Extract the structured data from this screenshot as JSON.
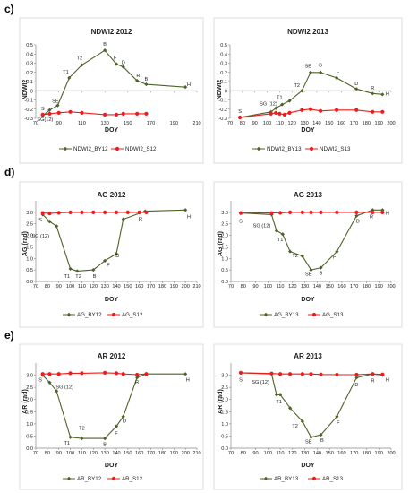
{
  "panel_labels": [
    "c)",
    "d)",
    "e)"
  ],
  "chart_data": [
    {
      "id": "ndwi-2012",
      "type": "line",
      "title": "NDWI2 2012",
      "xlabel": "DOY",
      "ylabel": "NDWI2",
      "xlim": [
        70,
        210
      ],
      "ylim": [
        -0.3,
        0.5
      ],
      "xticks": [
        "70",
        "90",
        "110",
        "130",
        "150",
        "170",
        "190",
        "210"
      ],
      "yticks": [
        "-0.3",
        "-0.2",
        "-0.1",
        "0",
        "0.1",
        "0.2",
        "0.3",
        "0.4",
        "0.5"
      ],
      "grid": false,
      "series": [
        {
          "name": "NDWI2_BY12",
          "color": "#4f6228",
          "marker": "diamond",
          "x": [
            76,
            82,
            89,
            99,
            110,
            130,
            140,
            146,
            158,
            166,
            200
          ],
          "y": [
            -0.27,
            -0.21,
            -0.16,
            0.14,
            0.28,
            0.44,
            0.29,
            0.26,
            0.11,
            0.07,
            0.04
          ]
        },
        {
          "name": "NDWI2_S12",
          "color": "#ee1c1c",
          "marker": "circle",
          "x": [
            76,
            82,
            90,
            100,
            110,
            130,
            140,
            146,
            158,
            166
          ],
          "y": [
            -0.26,
            -0.25,
            -0.24,
            -0.23,
            -0.24,
            -0.26,
            -0.26,
            -0.25,
            -0.25,
            -0.25
          ]
        }
      ],
      "annotations": [
        {
          "text": "S",
          "x": 76,
          "y": -0.21
        },
        {
          "text": "SG(12)",
          "x": 78,
          "y": -0.33
        },
        {
          "text": "SE",
          "x": 87,
          "y": -0.13
        },
        {
          "text": "T1",
          "x": 96,
          "y": 0.19
        },
        {
          "text": "T2",
          "x": 108,
          "y": 0.34
        },
        {
          "text": "B",
          "x": 130,
          "y": 0.49
        },
        {
          "text": "F",
          "x": 139,
          "y": 0.34
        },
        {
          "text": "D",
          "x": 146,
          "y": 0.29
        },
        {
          "text": "R",
          "x": 159,
          "y": 0.15
        },
        {
          "text": "B",
          "x": 166,
          "y": 0.11
        },
        {
          "text": "H",
          "x": 203,
          "y": 0.05
        }
      ]
    },
    {
      "id": "ndwi-2013",
      "type": "line",
      "title": "NDWI2 2013",
      "xlabel": "DOY",
      "ylabel": "NDWI2",
      "xlim": [
        70,
        200
      ],
      "ylim": [
        -0.3,
        0.5
      ],
      "xticks": [
        "70",
        "80",
        "90",
        "100",
        "110",
        "120",
        "130",
        "140",
        "150",
        "160",
        "170",
        "180",
        "190",
        "200"
      ],
      "yticks": [
        "-0.3",
        "-0.2",
        "-0.1",
        "0",
        "0.1",
        "0.2",
        "0.3",
        "0.4",
        "0.5"
      ],
      "grid": false,
      "series": [
        {
          "name": "NDWI2_BY13",
          "color": "#4f6228",
          "marker": "diamond",
          "x": [
            78,
            103,
            107,
            112,
            118,
            128,
            135,
            143,
            156,
            172,
            185,
            193
          ],
          "y": [
            -0.29,
            -0.23,
            -0.19,
            -0.15,
            -0.11,
            0.0,
            0.2,
            0.2,
            0.14,
            0.02,
            -0.03,
            -0.04
          ]
        },
        {
          "name": "NDWI2_S13",
          "color": "#ee1c1c",
          "marker": "circle",
          "x": [
            78,
            103,
            107,
            110,
            114,
            118,
            128,
            135,
            143,
            156,
            172,
            185,
            193
          ],
          "y": [
            -0.29,
            -0.25,
            -0.24,
            -0.25,
            -0.26,
            -0.24,
            -0.21,
            -0.2,
            -0.22,
            -0.21,
            -0.21,
            -0.23,
            -0.23
          ]
        }
      ],
      "annotations": [
        {
          "text": "S",
          "x": 78,
          "y": -0.24
        },
        {
          "text": "SG (12)",
          "x": 101,
          "y": -0.16
        },
        {
          "text": "T1",
          "x": 110,
          "y": -0.09
        },
        {
          "text": "T2",
          "x": 124,
          "y": 0.04
        },
        {
          "text": "SE",
          "x": 133,
          "y": 0.25
        },
        {
          "text": "B",
          "x": 143,
          "y": 0.26
        },
        {
          "text": "F",
          "x": 157,
          "y": 0.17
        },
        {
          "text": "D",
          "x": 172,
          "y": 0.06
        },
        {
          "text": "R",
          "x": 185,
          "y": 0.01
        },
        {
          "text": "H",
          "x": 197,
          "y": -0.05
        }
      ]
    },
    {
      "id": "ag-2012",
      "type": "line",
      "title": "AG 2012",
      "xlabel": "DOY",
      "ylabel": "AG (rad)",
      "xlim": [
        70,
        210
      ],
      "ylim": [
        0,
        3.5
      ],
      "xticks": [
        "70",
        "80",
        "90",
        "100",
        "110",
        "120",
        "130",
        "140",
        "150",
        "160",
        "170",
        "180",
        "190",
        "200",
        "210"
      ],
      "yticks": [
        "0.0",
        "0.5",
        "1.0",
        "1.5",
        "2.0",
        "2.5",
        "3.0"
      ],
      "grid": false,
      "series": [
        {
          "name": "AG_BY12",
          "color": "#4f6228",
          "marker": "diamond",
          "x": [
            76,
            82,
            88,
            100,
            106,
            120,
            130,
            140,
            146,
            165,
            200
          ],
          "y": [
            2.9,
            2.6,
            2.4,
            0.55,
            0.45,
            0.5,
            0.9,
            1.2,
            2.7,
            3.05,
            3.1
          ]
        },
        {
          "name": "AG_S12",
          "color": "#ee1c1c",
          "marker": "circle",
          "x": [
            76,
            82,
            90,
            100,
            110,
            120,
            130,
            140,
            150,
            160,
            166
          ],
          "y": [
            2.97,
            2.95,
            2.98,
            3.0,
            3.0,
            3.0,
            3.0,
            3.0,
            3.0,
            3.0,
            3.0
          ]
        }
      ],
      "annotations": [
        {
          "text": "S",
          "x": 74,
          "y": 2.6
        },
        {
          "text": "SG (12)",
          "x": 74,
          "y": 1.9
        },
        {
          "text": "T1",
          "x": 97,
          "y": 0.15
        },
        {
          "text": "T2",
          "x": 107,
          "y": 0.15
        },
        {
          "text": "B",
          "x": 121,
          "y": 0.15
        },
        {
          "text": "F",
          "x": 133,
          "y": 0.65
        },
        {
          "text": "D",
          "x": 141,
          "y": 1.05
        },
        {
          "text": "R",
          "x": 161,
          "y": 2.65
        },
        {
          "text": "H",
          "x": 203,
          "y": 2.75
        }
      ]
    },
    {
      "id": "ag-2013",
      "type": "line",
      "title": "AG 2013",
      "xlabel": "DOY",
      "ylabel": "AG (rad)",
      "xlim": [
        70,
        200
      ],
      "ylim": [
        0,
        3.5
      ],
      "xticks": [
        "70",
        "80",
        "90",
        "100",
        "110",
        "120",
        "130",
        "140",
        "150",
        "160",
        "170",
        "180",
        "190",
        "200"
      ],
      "yticks": [
        "0.0",
        "0.5",
        "1.0",
        "1.5",
        "2.0",
        "2.5",
        "3.0"
      ],
      "grid": false,
      "series": [
        {
          "name": "AG_BY13",
          "color": "#4f6228",
          "marker": "diamond",
          "x": [
            78,
            103,
            107,
            112,
            118,
            128,
            135,
            143,
            156,
            172,
            185,
            193
          ],
          "y": [
            2.97,
            2.9,
            2.2,
            2.05,
            1.3,
            1.1,
            0.5,
            0.6,
            1.3,
            2.85,
            3.1,
            3.1
          ]
        },
        {
          "name": "AG_S13",
          "color": "#ee1c1c",
          "marker": "circle",
          "x": [
            78,
            103,
            110,
            118,
            128,
            135,
            143,
            156,
            172,
            185,
            193
          ],
          "y": [
            2.97,
            2.97,
            2.98,
            3.0,
            3.0,
            3.0,
            3.0,
            3.0,
            3.0,
            3.0,
            3.0
          ]
        }
      ],
      "annotations": [
        {
          "text": "S",
          "x": 78,
          "y": 2.55
        },
        {
          "text": "SG (12)",
          "x": 95,
          "y": 2.35
        },
        {
          "text": "T1",
          "x": 110,
          "y": 1.75
        },
        {
          "text": "T2",
          "x": 122,
          "y": 1.05
        },
        {
          "text": "SE",
          "x": 133,
          "y": 0.25
        },
        {
          "text": "B",
          "x": 143,
          "y": 0.3
        },
        {
          "text": "F",
          "x": 154,
          "y": 1.0
        },
        {
          "text": "D",
          "x": 173,
          "y": 2.55
        },
        {
          "text": "R",
          "x": 184,
          "y": 2.75
        },
        {
          "text": "H",
          "x": 197,
          "y": 2.9
        }
      ]
    },
    {
      "id": "ar-2012",
      "type": "line",
      "title": "AR 2012",
      "xlabel": "DOY",
      "ylabel": "AR (rad)",
      "xlim": [
        70,
        210
      ],
      "ylim": [
        0,
        3.5
      ],
      "xticks": [
        "70",
        "80",
        "90",
        "100",
        "110",
        "120",
        "130",
        "140",
        "150",
        "160",
        "170",
        "180",
        "190",
        "200",
        "210"
      ],
      "yticks": [
        "0.0",
        "0.5",
        "1.0",
        "1.5",
        "2.0",
        "2.5",
        "3.0"
      ],
      "grid": false,
      "series": [
        {
          "name": "AR_BY12",
          "color": "#4f6228",
          "marker": "diamond",
          "x": [
            76,
            82,
            88,
            100,
            110,
            130,
            140,
            146,
            158,
            166,
            200
          ],
          "y": [
            3.0,
            2.7,
            2.35,
            0.45,
            0.4,
            0.4,
            0.9,
            1.3,
            2.9,
            3.05,
            3.05
          ]
        },
        {
          "name": "AR_S12",
          "color": "#ee1c1c",
          "marker": "circle",
          "x": [
            76,
            82,
            90,
            100,
            110,
            130,
            140,
            146,
            158,
            166
          ],
          "y": [
            3.05,
            3.05,
            3.05,
            3.08,
            3.08,
            3.1,
            3.08,
            3.05,
            3.02,
            3.05
          ]
        }
      ],
      "annotations": [
        {
          "text": "S",
          "x": 74,
          "y": 2.75
        },
        {
          "text": "SG (12)",
          "x": 95,
          "y": 2.45
        },
        {
          "text": "T1",
          "x": 97,
          "y": 0.15
        },
        {
          "text": "T2",
          "x": 110,
          "y": 0.75
        },
        {
          "text": "B",
          "x": 130,
          "y": 0.1
        },
        {
          "text": "F",
          "x": 140,
          "y": 0.55
        },
        {
          "text": "D",
          "x": 147,
          "y": 1.05
        },
        {
          "text": "R",
          "x": 158,
          "y": 2.65
        },
        {
          "text": "H",
          "x": 202,
          "y": 2.75
        }
      ]
    },
    {
      "id": "ar-2013",
      "type": "line",
      "title": "AR 2013",
      "xlabel": "DOY",
      "ylabel": "AR (rad)",
      "xlim": [
        70,
        200
      ],
      "ylim": [
        0,
        3.5
      ],
      "xticks": [
        "70",
        "80",
        "90",
        "100",
        "110",
        "120",
        "130",
        "140",
        "150",
        "160",
        "170",
        "180",
        "190",
        "200"
      ],
      "yticks": [
        "0.0",
        "0.5",
        "1.0",
        "1.5",
        "2.0",
        "2.5",
        "3.0"
      ],
      "grid": false,
      "series": [
        {
          "name": "AR_BY13",
          "color": "#4f6228",
          "marker": "diamond",
          "x": [
            78,
            103,
            107,
            110,
            118,
            128,
            135,
            143,
            156,
            172,
            185,
            193
          ],
          "y": [
            3.1,
            3.05,
            2.2,
            2.2,
            1.65,
            1.1,
            0.45,
            0.55,
            1.3,
            2.9,
            3.05,
            3.0
          ]
        },
        {
          "name": "AR_S13",
          "color": "#ee1c1c",
          "marker": "circle",
          "x": [
            78,
            103,
            110,
            118,
            128,
            135,
            143,
            156,
            172,
            185,
            193
          ],
          "y": [
            3.1,
            3.07,
            3.05,
            3.05,
            3.05,
            3.05,
            3.03,
            3.02,
            3.02,
            3.05,
            3.03
          ]
        }
      ],
      "annotations": [
        {
          "text": "S",
          "x": 78,
          "y": 2.75
        },
        {
          "text": "SG (12)",
          "x": 94,
          "y": 2.65
        },
        {
          "text": "T1",
          "x": 109,
          "y": 1.85
        },
        {
          "text": "T2",
          "x": 122,
          "y": 0.85
        },
        {
          "text": "SE",
          "x": 133,
          "y": 0.2
        },
        {
          "text": "B",
          "x": 144,
          "y": 0.25
        },
        {
          "text": "F",
          "x": 157,
          "y": 1.0
        },
        {
          "text": "D",
          "x": 172,
          "y": 2.55
        },
        {
          "text": "R",
          "x": 185,
          "y": 2.7
        },
        {
          "text": "H",
          "x": 197,
          "y": 2.75
        }
      ]
    }
  ]
}
